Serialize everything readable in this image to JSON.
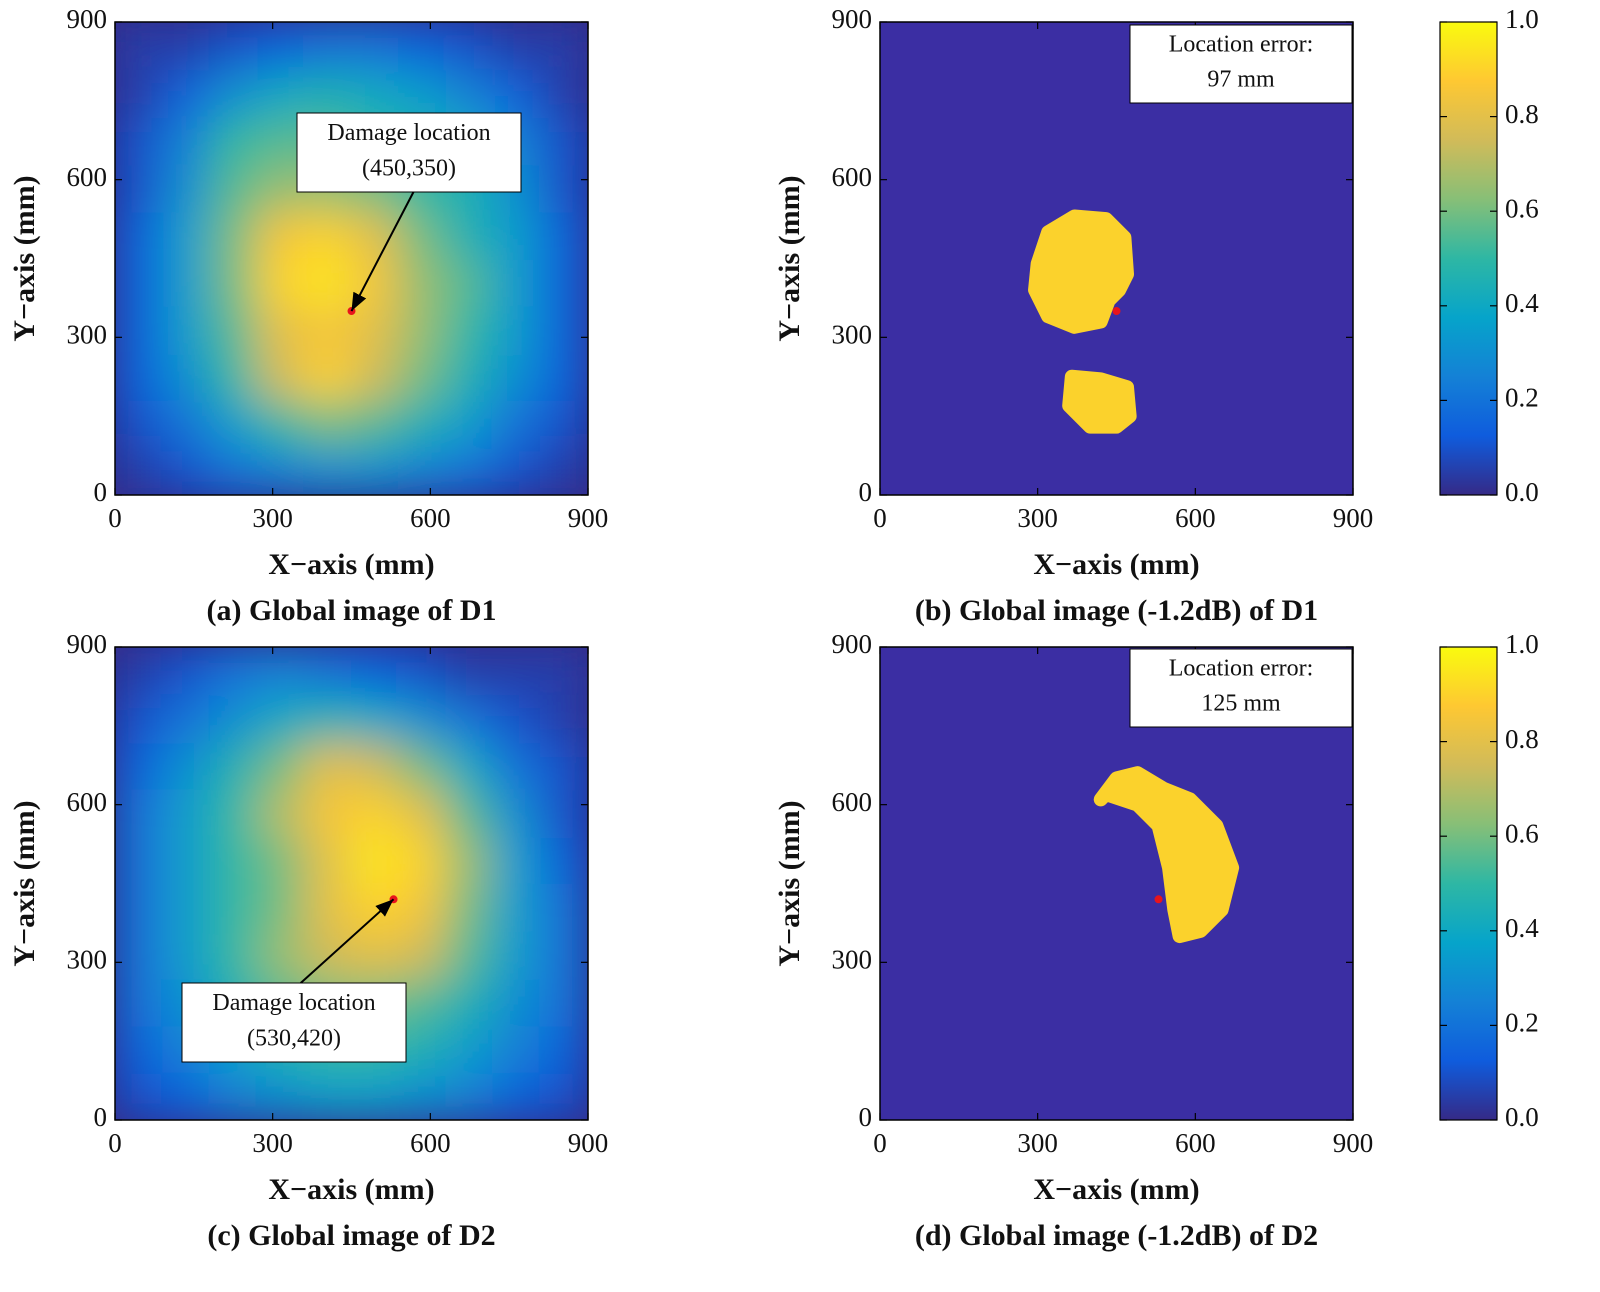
{
  "chart_data": [
    {
      "type": "heatmap",
      "caption": "(a) Global image of D1",
      "x_label": "X−axis (mm)",
      "y_label": "Y−axis (mm)",
      "xlim": [
        0,
        900
      ],
      "ylim": [
        0,
        900
      ],
      "xticks": [
        0,
        300,
        600,
        900
      ],
      "yticks": [
        0,
        300,
        600,
        900
      ],
      "x": [
        45,
        135,
        225,
        315,
        405,
        495,
        585,
        675,
        765,
        855
      ],
      "y": [
        45,
        135,
        225,
        315,
        405,
        495,
        585,
        675,
        765,
        855
      ],
      "z": [
        [
          0.05,
          0.1,
          0.2,
          0.25,
          0.3,
          0.3,
          0.25,
          0.2,
          0.1,
          0.05
        ],
        [
          0.1,
          0.2,
          0.35,
          0.5,
          0.6,
          0.55,
          0.45,
          0.35,
          0.2,
          0.1
        ],
        [
          0.15,
          0.3,
          0.5,
          0.75,
          0.9,
          0.75,
          0.6,
          0.45,
          0.3,
          0.15
        ],
        [
          0.15,
          0.35,
          0.55,
          0.8,
          0.85,
          0.8,
          0.65,
          0.5,
          0.35,
          0.15
        ],
        [
          0.15,
          0.35,
          0.6,
          0.9,
          0.95,
          0.85,
          0.65,
          0.55,
          0.35,
          0.15
        ],
        [
          0.15,
          0.35,
          0.6,
          0.85,
          0.9,
          0.8,
          0.6,
          0.45,
          0.35,
          0.15
        ],
        [
          0.1,
          0.3,
          0.55,
          0.65,
          0.65,
          0.6,
          0.5,
          0.45,
          0.3,
          0.1
        ],
        [
          0.1,
          0.25,
          0.5,
          0.55,
          0.55,
          0.5,
          0.45,
          0.4,
          0.25,
          0.1
        ],
        [
          0.05,
          0.15,
          0.3,
          0.4,
          0.45,
          0.4,
          0.35,
          0.25,
          0.15,
          0.05
        ],
        [
          0.05,
          0.05,
          0.1,
          0.15,
          0.2,
          0.2,
          0.15,
          0.1,
          0.05,
          0.05
        ]
      ],
      "zlim": [
        0,
        1
      ],
      "colormap": [
        "#352a87",
        "#0f5cdd",
        "#1481d6",
        "#06a4ca",
        "#2eb7a4",
        "#87bf77",
        "#d1bb59",
        "#fec832",
        "#f9fb0e"
      ],
      "damage": {
        "x": 450,
        "y": 350,
        "color": "#e8141c"
      },
      "annotation": [
        "Damage location",
        "(450,350)"
      ]
    },
    {
      "type": "region",
      "caption": "(b) Global image (-1.2dB) of D1",
      "x_label": "X−axis (mm)",
      "y_label": "Y−axis (mm)",
      "xlim": [
        0,
        900
      ],
      "ylim": [
        0,
        900
      ],
      "xticks": [
        0,
        300,
        600,
        900
      ],
      "yticks": [
        0,
        300,
        600,
        900
      ],
      "background": "#3b2ea3",
      "region_color": "#fbd22c",
      "regions": [
        {
          "x": [
            300,
            320,
            370,
            430,
            465,
            470,
            455,
            435,
            420,
            370,
            320,
            295
          ],
          "y": [
            440,
            500,
            530,
            525,
            490,
            420,
            390,
            370,
            330,
            320,
            340,
            390
          ]
        },
        {
          "x": [
            365,
            420,
            470,
            475,
            450,
            400,
            360
          ],
          "y": [
            225,
            220,
            205,
            150,
            130,
            130,
            170
          ]
        }
      ],
      "damage": {
        "x": 450,
        "y": 350,
        "color": "#e8141c"
      },
      "annotation": [
        "Location error:",
        "97 mm"
      ],
      "colorbar": {
        "ylim": [
          0,
          1
        ],
        "yticks": [
          {
            "value": 0,
            "label": "0.0"
          },
          0.2,
          0.4,
          0.6,
          0.8,
          {
            "value": 1,
            "label": "1.0"
          }
        ],
        "colormap": [
          "#352a87",
          "#0f5cdd",
          "#1481d6",
          "#06a4ca",
          "#2eb7a4",
          "#87bf77",
          "#d1bb59",
          "#fec832",
          "#f9fb0e"
        ]
      }
    },
    {
      "type": "heatmap",
      "caption": "(c) Global image of D2",
      "x_label": "X−axis (mm)",
      "y_label": "Y−axis (mm)",
      "xlim": [
        0,
        900
      ],
      "ylim": [
        0,
        900
      ],
      "xticks": [
        0,
        300,
        600,
        900
      ],
      "yticks": [
        0,
        300,
        600,
        900
      ],
      "x": [
        45,
        135,
        225,
        315,
        405,
        495,
        585,
        675,
        765,
        855
      ],
      "y": [
        45,
        135,
        225,
        315,
        405,
        495,
        585,
        675,
        765,
        855
      ],
      "z": [
        [
          0.1,
          0.15,
          0.25,
          0.3,
          0.35,
          0.35,
          0.3,
          0.25,
          0.15,
          0.1
        ],
        [
          0.15,
          0.25,
          0.35,
          0.45,
          0.5,
          0.5,
          0.45,
          0.35,
          0.25,
          0.15
        ],
        [
          0.2,
          0.3,
          0.45,
          0.55,
          0.6,
          0.6,
          0.55,
          0.45,
          0.3,
          0.2
        ],
        [
          0.2,
          0.35,
          0.5,
          0.65,
          0.75,
          0.8,
          0.75,
          0.55,
          0.35,
          0.2
        ],
        [
          0.2,
          0.35,
          0.5,
          0.6,
          0.8,
          0.9,
          0.85,
          0.6,
          0.35,
          0.2
        ],
        [
          0.2,
          0.35,
          0.5,
          0.6,
          0.8,
          0.95,
          0.9,
          0.65,
          0.35,
          0.15
        ],
        [
          0.2,
          0.35,
          0.5,
          0.7,
          0.85,
          0.9,
          0.8,
          0.55,
          0.3,
          0.1
        ],
        [
          0.15,
          0.3,
          0.45,
          0.6,
          0.8,
          0.75,
          0.6,
          0.4,
          0.2,
          0.1
        ],
        [
          0.1,
          0.2,
          0.3,
          0.4,
          0.45,
          0.4,
          0.3,
          0.2,
          0.1,
          0.05
        ],
        [
          0.05,
          0.1,
          0.2,
          0.25,
          0.2,
          0.15,
          0.1,
          0.05,
          0.05,
          0.05
        ]
      ],
      "zlim": [
        0,
        1
      ],
      "colormap": [
        "#352a87",
        "#0f5cdd",
        "#1481d6",
        "#06a4ca",
        "#2eb7a4",
        "#87bf77",
        "#d1bb59",
        "#fec832",
        "#f9fb0e"
      ],
      "damage": {
        "x": 530,
        "y": 420,
        "color": "#e8141c"
      },
      "annotation": [
        "Damage location",
        "(530,420)"
      ]
    },
    {
      "type": "region",
      "caption": "(d) Global image (-1.2dB) of D2",
      "x_label": "X−axis (mm)",
      "y_label": "Y−axis (mm)",
      "xlim": [
        0,
        900
      ],
      "ylim": [
        0,
        900
      ],
      "xticks": [
        0,
        300,
        600,
        900
      ],
      "yticks": [
        0,
        300,
        600,
        900
      ],
      "background": "#3b2ea3",
      "region_color": "#fbd22c",
      "regions": [
        {
          "x": [
            420,
            450,
            490,
            540,
            590,
            640,
            670,
            650,
            610,
            570,
            560,
            550,
            530,
            490,
            430
          ],
          "y": [
            610,
            650,
            660,
            630,
            610,
            560,
            480,
            400,
            360,
            350,
            400,
            480,
            560,
            600,
            620
          ]
        }
      ],
      "damage": {
        "x": 530,
        "y": 420,
        "color": "#e8141c"
      },
      "annotation": [
        "Location error:",
        "125 mm"
      ],
      "colorbar": {
        "ylim": [
          0,
          1
        ],
        "yticks": [
          {
            "value": 0,
            "label": "0.0"
          },
          0.2,
          0.4,
          0.6,
          0.8,
          {
            "value": 1,
            "label": "1.0"
          }
        ],
        "colormap": [
          "#352a87",
          "#0f5cdd",
          "#1481d6",
          "#06a4ca",
          "#2eb7a4",
          "#87bf77",
          "#d1bb59",
          "#fec832",
          "#f9fb0e"
        ]
      }
    }
  ]
}
